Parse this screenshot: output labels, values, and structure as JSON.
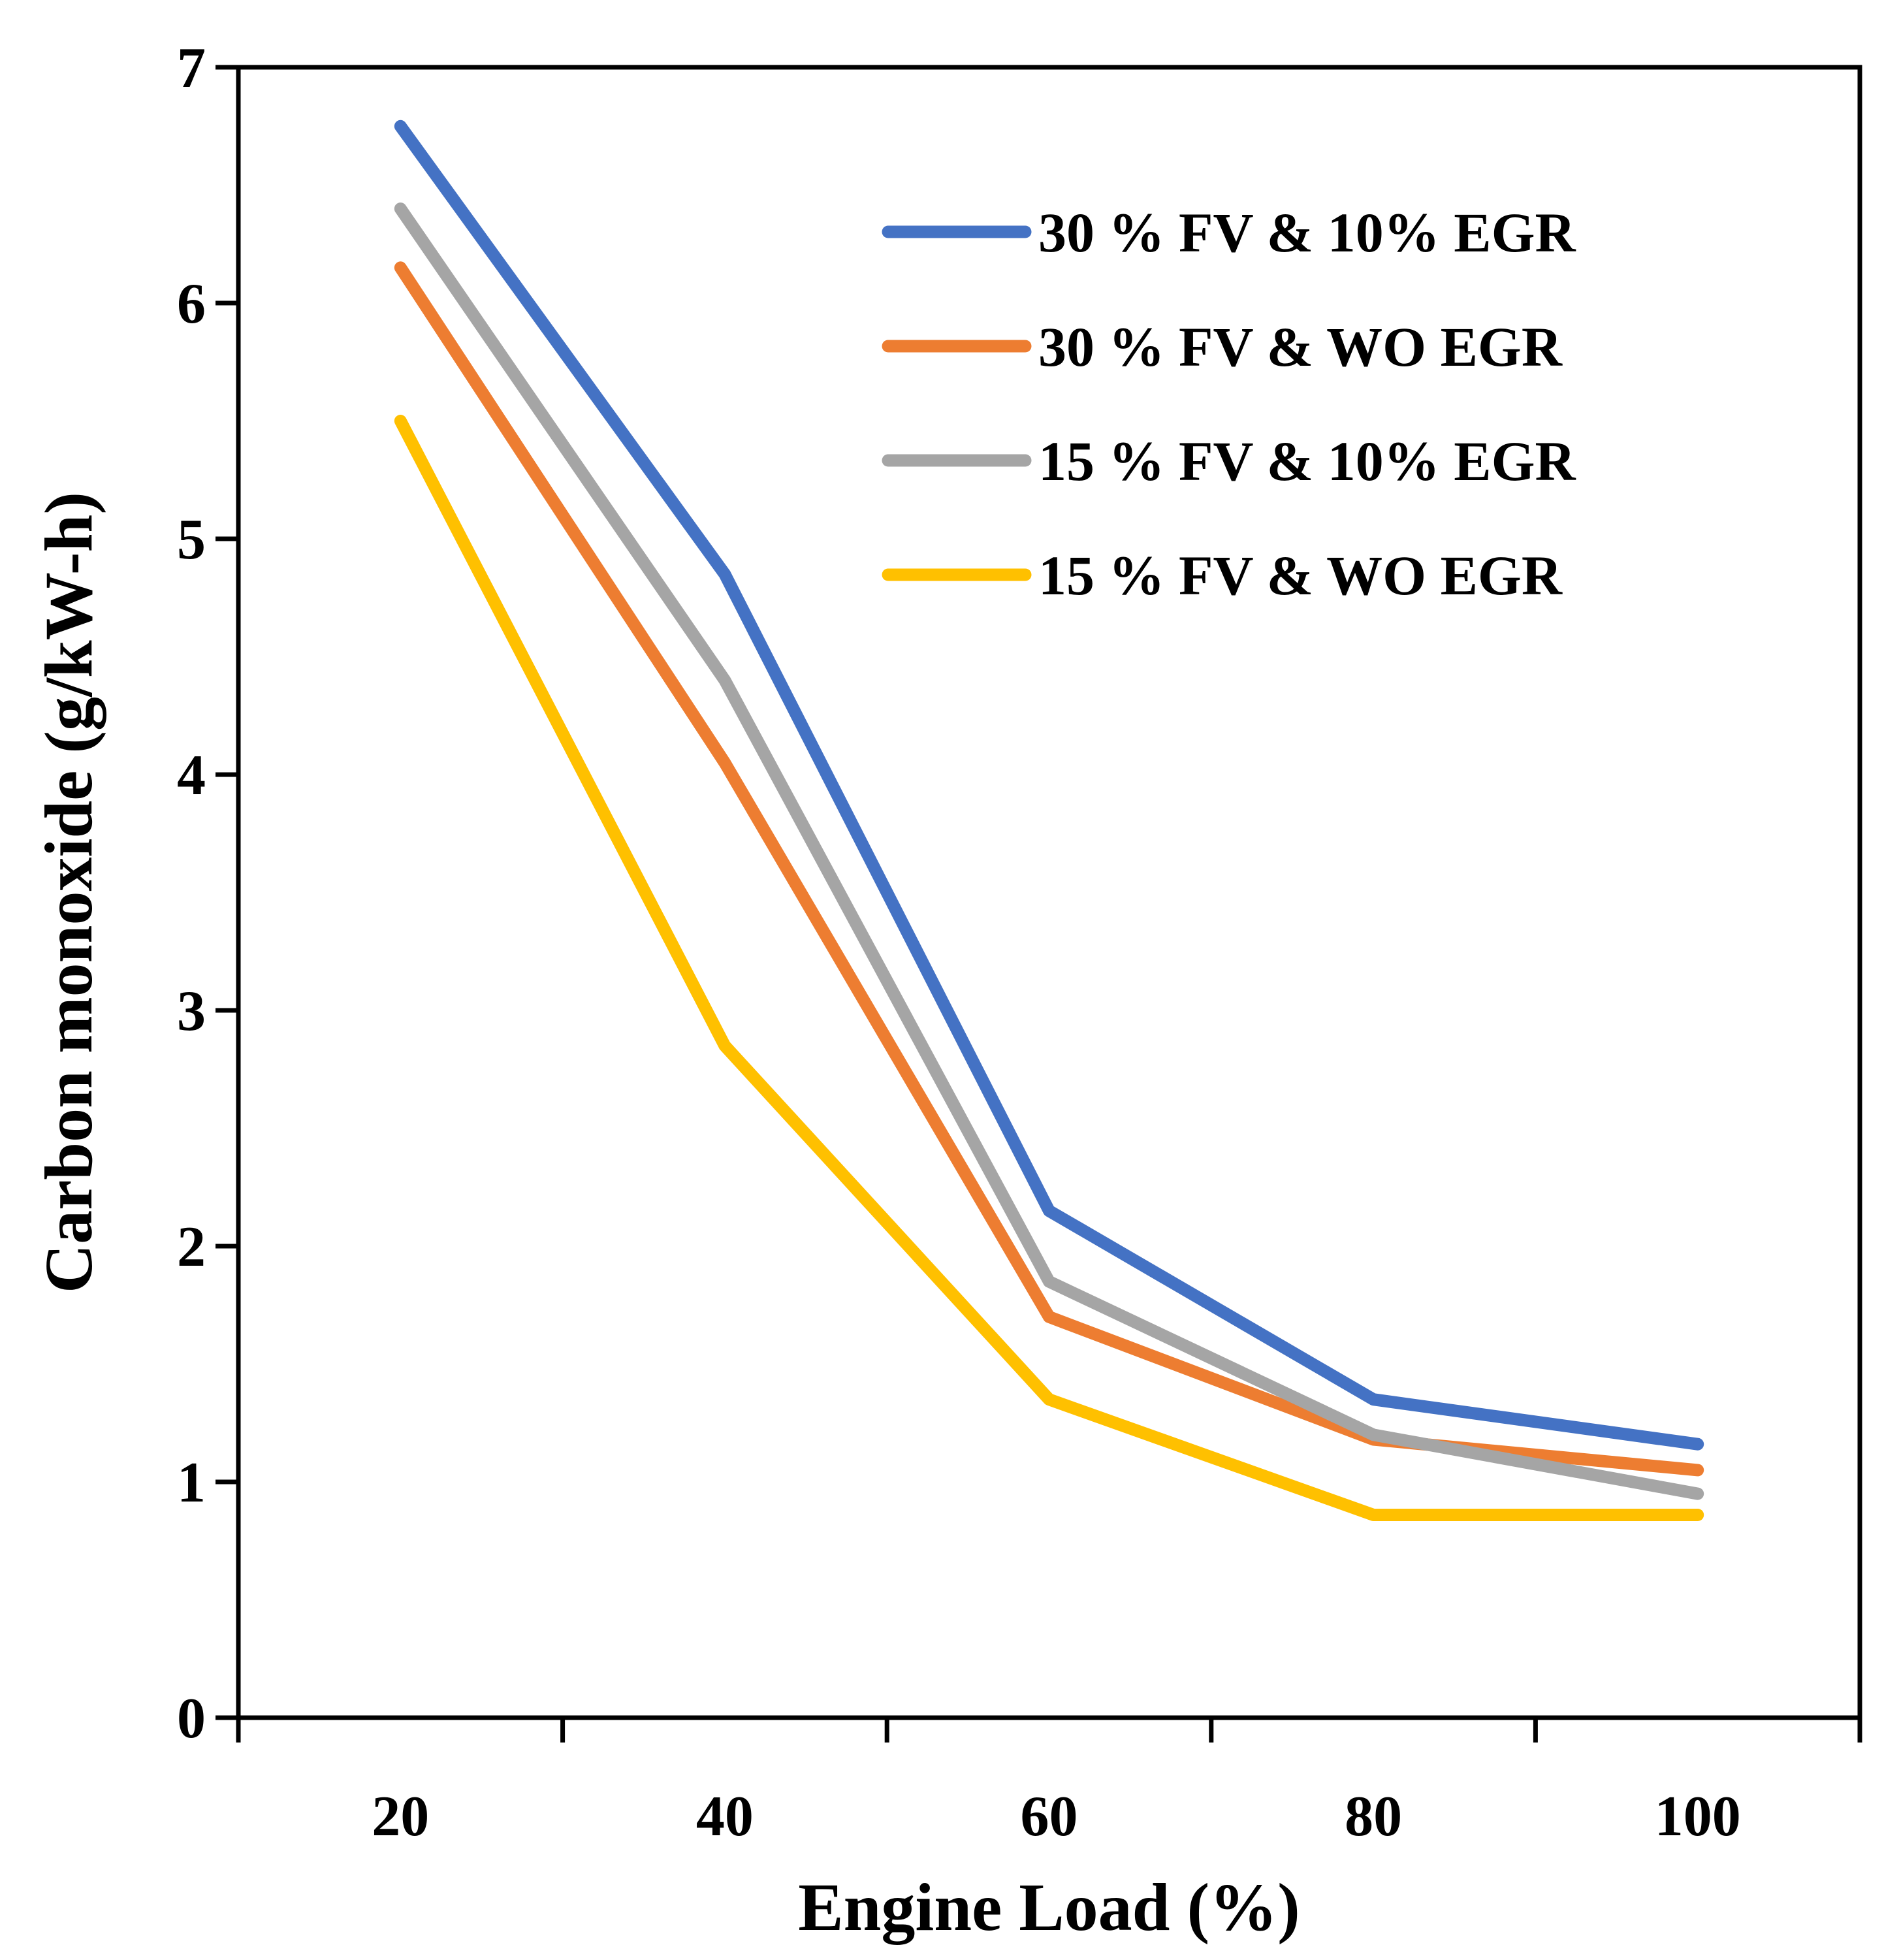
{
  "chart_data": {
    "type": "line",
    "title": "",
    "xlabel": "Engine Load (%)",
    "ylabel": "Carbon monoxide (g/kW-h)",
    "categories": [
      "20",
      "40",
      "60",
      "80",
      "100"
    ],
    "x": [
      20,
      40,
      60,
      80,
      100
    ],
    "ylim": [
      0,
      7
    ],
    "yticks": [
      "0",
      "1",
      "2",
      "3",
      "4",
      "5",
      "6",
      "7"
    ],
    "grid": false,
    "legend_position": "top-right",
    "series": [
      {
        "name": "30 % FV & 10% EGR",
        "color": "#4472C4",
        "values": [
          6.75,
          4.85,
          2.15,
          1.35,
          1.16
        ]
      },
      {
        "name": "30 % FV & WO EGR",
        "color": "#ED7D31",
        "values": [
          6.15,
          4.05,
          1.7,
          1.18,
          1.05
        ]
      },
      {
        "name": "15 % FV & 10% EGR",
        "color": "#A5A5A5",
        "values": [
          6.4,
          4.4,
          1.85,
          1.2,
          0.95
        ]
      },
      {
        "name": "15 % FV & WO EGR",
        "color": "#FFC000",
        "values": [
          5.5,
          2.85,
          1.35,
          0.86,
          0.86
        ]
      }
    ]
  }
}
